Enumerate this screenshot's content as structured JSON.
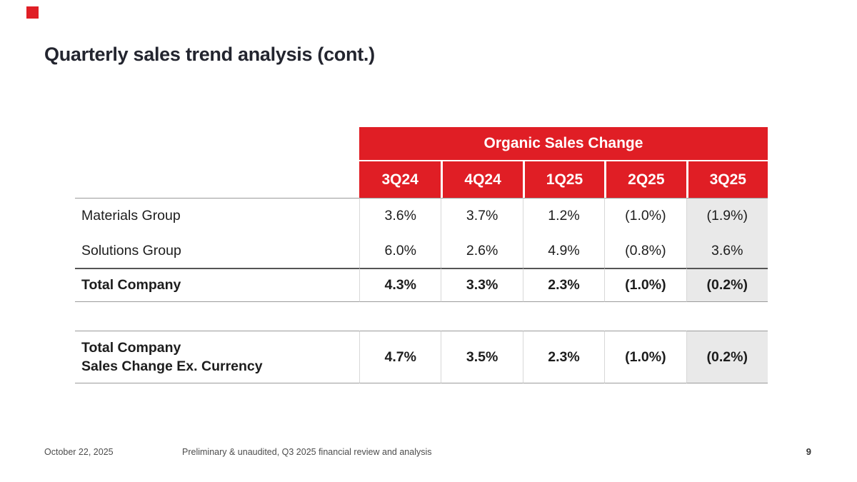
{
  "slide": {
    "title": "Quarterly sales trend analysis (cont.)",
    "footer": {
      "date": "October 22, 2025",
      "note": "Preliminary & unaudited, Q3 2025 financial review and analysis",
      "page_number": "9"
    }
  },
  "table": {
    "group_header": "Organic Sales Change",
    "columns": [
      "3Q24",
      "4Q24",
      "1Q25",
      "2Q25",
      "3Q25"
    ],
    "rows": [
      {
        "label": "Materials Group",
        "values": [
          "3.6%",
          "3.7%",
          "1.2%",
          "(1.0%)",
          "(1.9%)"
        ]
      },
      {
        "label": "Solutions Group",
        "values": [
          "6.0%",
          "2.6%",
          "4.9%",
          "(0.8%)",
          "3.6%"
        ]
      },
      {
        "label": "Total Company",
        "values": [
          "4.3%",
          "3.3%",
          "2.3%",
          "(1.0%)",
          "(0.2%)"
        ]
      }
    ],
    "ex_currency": {
      "label_line1": "Total Company",
      "label_line2": "Sales Change Ex. Currency",
      "values": [
        "4.7%",
        "3.5%",
        "2.3%",
        "(1.0%)",
        "(0.2%)"
      ]
    }
  },
  "colors": {
    "accent_red": "#e01e25",
    "highlight_column_bg": "#e9e9e9"
  }
}
